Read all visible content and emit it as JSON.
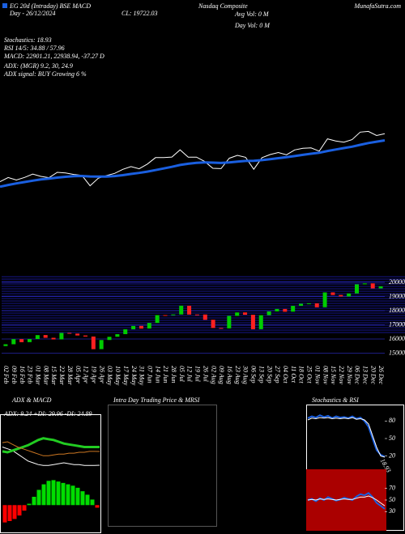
{
  "header": {
    "left_title": "EG 20d (Intraday) BSE MACD",
    "center_title": "Nasdaq Composite",
    "site": "MunafaSutra.com",
    "date": "Day - 26/12/2024",
    "close": "CL: 19722.03",
    "avg_vol": "Avg Vol: 0  M",
    "day_vol": "Day Vol: 0  M",
    "stochastics": "Stochastics: 18.93",
    "rsi": "RSI 14/5: 34.88 / 57.96",
    "macd": "MACD: 22901.21, 22938.94, -37.27 D",
    "adx": "ADX:  (MGR) 9.2, 30, 24.9",
    "adx_signal": "ADX  signal:  BUY Growing 6 %"
  },
  "chart_data": [
    {
      "type": "line",
      "ylim": [
        8000,
        27000
      ],
      "series": [
        {
          "color": "#ffffff",
          "values": [
            15629,
            15990,
            15776,
            15997,
            16275,
            16085,
            15973,
            16429,
            16379,
            16249,
            16175,
            15282,
            15928,
            16156,
            16340,
            16686,
            16921,
            16735,
            17133,
            17689,
            17689,
            17733,
            18353,
            17727,
            17727,
            17358,
            16777,
            16746,
            17631,
            17877,
            17713,
            16691,
            17683,
            17948,
            18120,
            17925,
            18342,
            18489,
            18519,
            18240,
            19287,
            19107,
            19004,
            19219,
            19860,
            19927,
            19572,
            19723
          ]
        },
        {
          "color": "#1a5fe0",
          "values": [
            15200,
            15350,
            15480,
            15600,
            15720,
            15820,
            15900,
            15980,
            16050,
            16100,
            16120,
            16080,
            16060,
            16070,
            16110,
            16190,
            16290,
            16380,
            16490,
            16620,
            16760,
            16900,
            17060,
            17160,
            17240,
            17280,
            17260,
            17230,
            17270,
            17340,
            17400,
            17410,
            17470,
            17550,
            17640,
            17720,
            17820,
            17920,
            18020,
            18100,
            18250,
            18380,
            18500,
            18620,
            18780,
            18930,
            19050,
            19160
          ]
        }
      ]
    },
    {
      "type": "candlestick",
      "ylim": [
        14800,
        20400
      ],
      "yticks": [
        15000,
        16000,
        17000,
        18000,
        19000,
        20000
      ],
      "grid": true,
      "up_color": "#00cc00",
      "down_color": "#ff2020",
      "categories": [
        "02 Feb",
        "09 Feb",
        "16 Feb",
        "23 Feb",
        "01 Mar",
        "08 Mar",
        "15 Mar",
        "22 Mar",
        "28 Mar",
        "05 Apr",
        "12 Apr",
        "19 Apr",
        "26 Apr",
        "03 May",
        "10 May",
        "17 May",
        "24 May",
        "31 May",
        "07 Jun",
        "14 Jun",
        "21 Jun",
        "28 Jun",
        "05 Jul",
        "12 Jul",
        "19 Jul",
        "26 Jul",
        "02 Aug",
        "09 Aug",
        "16 Aug",
        "23 Aug",
        "30 Aug",
        "06 Sep",
        "13 Sep",
        "20 Sep",
        "27 Sep",
        "04 Oct",
        "11 Oct",
        "18 Oct",
        "25 Oct",
        "01 Nov",
        "08 Nov",
        "15 Nov",
        "22 Nov",
        "29 Nov",
        "06 Dec",
        "13 Dec",
        "20 Dec",
        "26 Dec"
      ],
      "open": [
        15500,
        15630,
        15990,
        15780,
        16000,
        16280,
        16085,
        15975,
        16430,
        16380,
        16250,
        16175,
        15285,
        15930,
        16160,
        16345,
        16690,
        16925,
        16740,
        17135,
        17690,
        17690,
        17735,
        18350,
        17730,
        17730,
        17360,
        16780,
        16750,
        17630,
        17880,
        17715,
        16695,
        17685,
        17950,
        18120,
        17930,
        18345,
        18490,
        18520,
        18245,
        19290,
        19110,
        19005,
        19220,
        19860,
        19930,
        19575
      ],
      "close": [
        15629,
        15990,
        15776,
        15997,
        16275,
        16085,
        15973,
        16429,
        16379,
        16249,
        16175,
        15282,
        15928,
        16156,
        16340,
        16686,
        16921,
        16735,
        17133,
        17689,
        17689,
        17733,
        18353,
        17727,
        17727,
        17358,
        16777,
        16746,
        17631,
        17877,
        17713,
        16691,
        17683,
        17948,
        18120,
        17925,
        18342,
        18489,
        18519,
        18240,
        19287,
        19107,
        19004,
        19219,
        19860,
        19927,
        19572,
        19723
      ]
    },
    {
      "type": "line",
      "title": "ADX  & MACD",
      "subtitle": "ADX: 9.24  +DI: 29.96  -DI: 24.89",
      "ylim": [
        0,
        60
      ],
      "series": [
        {
          "color": "#ffffff",
          "values": [
            30,
            28,
            26,
            22,
            18,
            14,
            12,
            10,
            9,
            9,
            10,
            11,
            12,
            11,
            10,
            10,
            9,
            9,
            9,
            9.24
          ]
        },
        {
          "color": "#22cc22",
          "values": [
            25,
            24,
            26,
            28,
            30,
            32,
            35,
            38,
            40,
            39,
            38,
            36,
            34,
            33,
            32,
            31,
            30,
            30,
            30,
            29.96
          ]
        },
        {
          "color": "#cc7722",
          "values": [
            35,
            36,
            33,
            30,
            28,
            26,
            24,
            22,
            20,
            20,
            21,
            22,
            22,
            23,
            23,
            24,
            24,
            25,
            25,
            24.89
          ]
        }
      ]
    },
    {
      "type": "bar",
      "ylim": [
        -300,
        400
      ],
      "color": "#00dd00",
      "negative_color": "#ff0000",
      "values": [
        -250,
        -230,
        -200,
        -150,
        -80,
        20,
        120,
        220,
        300,
        350,
        360,
        340,
        320,
        300,
        280,
        250,
        200,
        150,
        80,
        -37
      ]
    },
    {
      "type": "line",
      "title": "Intra  Day Trading Price  & MRSI",
      "series": []
    },
    {
      "type": "line",
      "title": "Stochastics & RSI",
      "ylim": [
        0,
        100
      ],
      "yticks": [
        20,
        50,
        80
      ],
      "annotation": "18.93",
      "series": [
        {
          "color": "#1a5fe0",
          "values": [
            85,
            88,
            86,
            90,
            87,
            89,
            85,
            88,
            86,
            87,
            85,
            88,
            84,
            86,
            80,
            70,
            50,
            30,
            22,
            18.93
          ]
        },
        {
          "color": "#ffffff",
          "values": [
            82,
            85,
            84,
            86,
            85,
            86,
            84,
            85,
            84,
            85,
            84,
            86,
            83,
            84,
            82,
            75,
            55,
            35,
            20,
            18
          ]
        }
      ]
    },
    {
      "type": "line",
      "ylim": [
        0,
        100
      ],
      "yticks": [
        30,
        50,
        70
      ],
      "background": "#aa0000",
      "series": [
        {
          "color": "#1a5fe0",
          "values": [
            50,
            52,
            48,
            53,
            50,
            55,
            52,
            49,
            51,
            54,
            52,
            50,
            56,
            60,
            58,
            62,
            55,
            45,
            40,
            34.88
          ]
        },
        {
          "color": "#ffffff",
          "values": [
            50,
            51,
            50,
            52,
            51,
            52,
            51,
            50,
            51,
            52,
            51,
            51,
            53,
            55,
            55,
            57,
            54,
            50,
            45,
            40
          ]
        }
      ]
    }
  ]
}
